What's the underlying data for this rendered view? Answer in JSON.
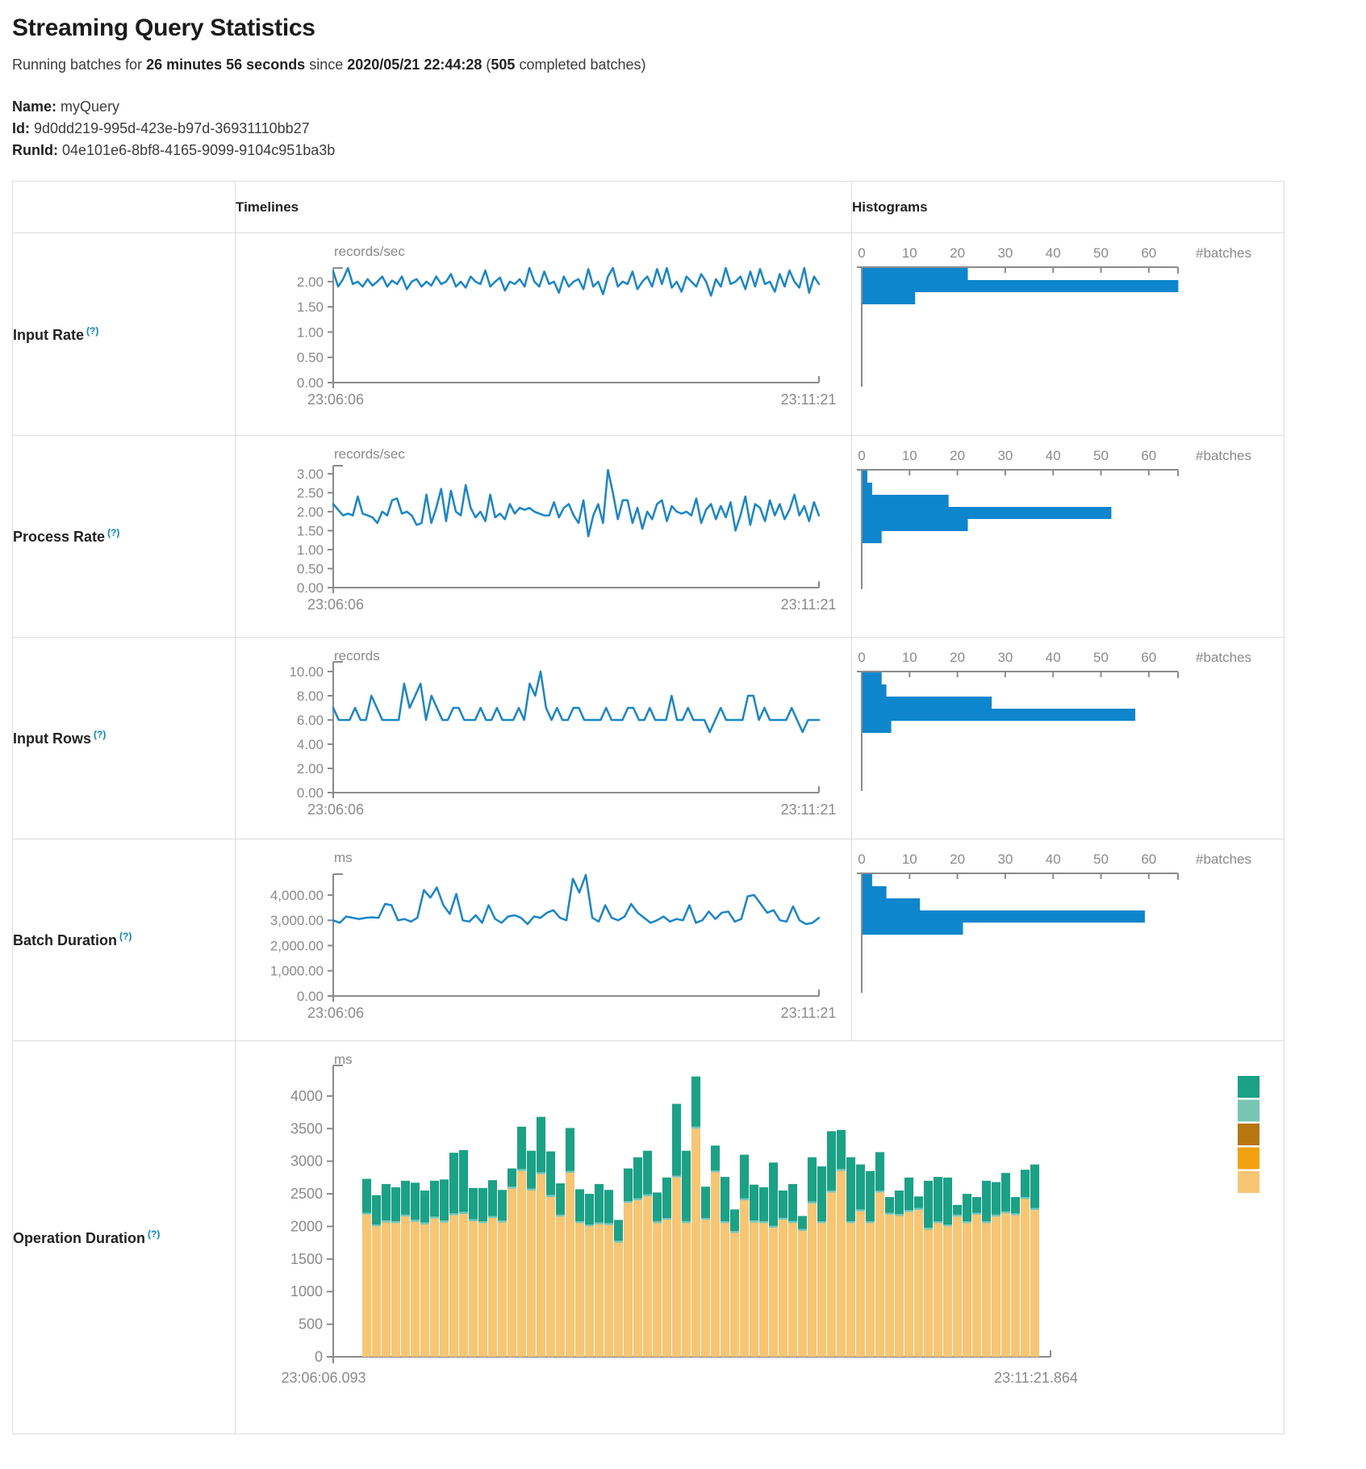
{
  "page": {
    "title": "Streaming Query Statistics",
    "subtitle": {
      "part1": "Running batches for ",
      "part2": "26 minutes 56 seconds",
      "part3": " since ",
      "part4": "2020/05/21 22:44:28",
      "part5": " (",
      "part6": "505",
      "part7": " completed batches)"
    },
    "name_label": "Name:",
    "name_value": "myQuery",
    "id_label": "Id:",
    "id_value": "9d0dd219-995d-423e-b97d-36931110bb27",
    "runid_label": "RunId:",
    "runid_value": "04e101e6-8bf8-4165-9099-9104c951ba3b"
  },
  "table": {
    "col_headers": [
      "Timelines",
      "Histograms"
    ],
    "rows": [
      {
        "label": "Input Rate",
        "help": "(?)"
      },
      {
        "label": "Process Rate",
        "help": "(?)"
      },
      {
        "label": "Input Rows",
        "help": "(?)"
      },
      {
        "label": "Batch Duration",
        "help": "(?)"
      },
      {
        "label": "Operation Duration",
        "help": "(?)"
      }
    ]
  },
  "colors": {
    "blue": "#0d86cd",
    "line_blue": "#1787cb",
    "axis_gray": "#8b8b8b",
    "tick_text": "#8a8a8a",
    "teal": "#1aa287",
    "light_teal": "#77c6b3",
    "dark_orange": "#b8770e",
    "orange": "#f2a00e",
    "tan": "#f8c572"
  },
  "chart_data": [
    {
      "row": "Input Rate",
      "type": "line",
      "unit": "records/sec",
      "x_start": "23:06:06",
      "x_end": "23:11:21",
      "ymax": 2.27,
      "yticks_v": [
        2,
        1.5,
        1,
        0.5,
        0
      ],
      "yticks_label": [
        "2.00",
        "1.50",
        "1.00",
        "0.50",
        "0.00"
      ],
      "values": [
        2.2,
        1.9,
        2.05,
        2.27,
        1.95,
        2.0,
        1.9,
        2.05,
        1.92,
        2.0,
        2.1,
        1.9,
        2.02,
        1.95,
        2.1,
        1.85,
        2.0,
        2.05,
        1.9,
        2.0,
        1.92,
        2.1,
        1.95,
        2.0,
        2.15,
        1.9,
        2.0,
        1.88,
        2.1,
        2.0,
        1.95,
        2.22,
        1.9,
        2.0,
        2.08,
        1.82,
        2.0,
        1.95,
        2.05,
        1.9,
        2.27,
        2.0,
        1.9,
        2.2,
        1.95,
        2.0,
        1.78,
        2.1,
        1.9,
        2.0,
        2.05,
        1.85,
        2.25,
        1.9,
        2.0,
        1.75,
        2.1,
        2.27,
        1.9,
        2.0,
        1.95,
        2.2,
        1.85,
        2.0,
        2.1,
        1.9,
        2.25,
        1.95,
        2.27,
        1.88,
        2.0,
        1.8,
        2.1,
        2.0,
        1.9,
        2.15,
        2.0,
        1.72,
        2.05,
        1.9,
        2.27,
        1.95,
        2.0,
        2.1,
        1.85,
        2.2,
        1.9,
        2.25,
        1.95,
        2.0,
        1.8,
        2.15,
        1.9,
        2.22,
        2.0,
        1.88,
        2.27,
        1.78,
        2.1,
        1.95
      ],
      "histogram": {
        "xticks_v": [
          0,
          10,
          20,
          30,
          40,
          50,
          60
        ],
        "xticks_label": [
          "0",
          "10",
          "20",
          "30",
          "40",
          "50",
          "60"
        ],
        "xlabel": "#batches",
        "values": [
          22,
          66,
          11
        ]
      }
    },
    {
      "row": "Process Rate",
      "type": "line",
      "unit": "records/sec",
      "x_start": "23:06:06",
      "x_end": "23:11:21",
      "ymax": 3.21,
      "yticks_v": [
        3,
        2.5,
        2,
        1.5,
        1,
        0.5,
        0
      ],
      "yticks_label": [
        "3.00",
        "2.50",
        "2.00",
        "1.50",
        "1.00",
        "0.50",
        "0.00"
      ],
      "values": [
        2.2,
        2.05,
        1.9,
        1.95,
        1.9,
        2.4,
        1.95,
        1.9,
        1.85,
        1.7,
        2.0,
        1.9,
        2.3,
        2.35,
        1.95,
        2.0,
        1.9,
        1.65,
        1.7,
        2.45,
        1.7,
        2.1,
        2.6,
        1.75,
        2.55,
        2.0,
        1.9,
        2.7,
        2.1,
        1.85,
        2.0,
        1.75,
        2.45,
        1.85,
        1.95,
        1.8,
        2.2,
        1.95,
        2.1,
        2.05,
        2.1,
        2.0,
        1.95,
        1.9,
        1.9,
        2.25,
        1.85,
        2.1,
        2.2,
        1.9,
        1.7,
        2.3,
        1.35,
        1.9,
        2.2,
        1.7,
        3.1,
        2.5,
        1.8,
        2.3,
        2.3,
        1.7,
        2.1,
        1.55,
        2.0,
        1.8,
        2.2,
        2.3,
        1.75,
        2.15,
        2.0,
        1.95,
        2.0,
        1.9,
        2.35,
        1.7,
        2.05,
        2.2,
        1.8,
        2.15,
        1.85,
        2.25,
        1.5,
        1.9,
        2.4,
        1.65,
        2.2,
        2.1,
        1.75,
        2.3,
        1.9,
        2.2,
        1.8,
        2.05,
        2.45,
        1.9,
        2.15,
        1.75,
        2.25,
        1.9
      ],
      "histogram": {
        "xticks_v": [
          0,
          10,
          20,
          30,
          40,
          50,
          60
        ],
        "xticks_label": [
          "0",
          "10",
          "20",
          "30",
          "40",
          "50",
          "60"
        ],
        "xlabel": "#batches",
        "values": [
          1,
          2,
          18,
          52,
          22,
          4
        ]
      }
    },
    {
      "row": "Input Rows",
      "type": "line",
      "unit": "records",
      "x_start": "23:06:06",
      "x_end": "23:11:21",
      "ymax": 10.8,
      "yticks_v": [
        10,
        8,
        6,
        4,
        2,
        0
      ],
      "yticks_label": [
        "10.00",
        "8.00",
        "6.00",
        "4.00",
        "2.00",
        "0.00"
      ],
      "values": [
        7,
        6,
        6,
        6,
        7,
        6,
        6,
        8,
        7,
        6,
        6,
        6,
        6,
        9,
        7,
        8,
        9,
        6,
        8,
        7,
        6,
        6,
        7,
        7,
        6,
        6,
        6,
        7,
        6,
        6,
        7,
        6,
        6,
        6,
        7,
        6,
        9,
        8,
        10,
        7,
        6,
        7,
        6,
        6,
        7,
        7,
        6,
        6,
        6,
        6,
        7,
        6,
        6,
        6,
        7,
        7,
        6,
        6,
        7,
        6,
        6,
        6,
        8,
        6,
        6,
        7,
        6,
        6,
        6,
        5,
        6,
        7,
        6,
        6,
        6,
        6,
        8,
        8,
        6,
        7,
        6,
        6,
        6,
        6,
        7,
        6,
        5,
        6,
        6,
        6
      ],
      "histogram": {
        "xticks_v": [
          0,
          10,
          20,
          30,
          40,
          50,
          60
        ],
        "xticks_label": [
          "0",
          "10",
          "20",
          "30",
          "40",
          "50",
          "60"
        ],
        "xlabel": "#batches",
        "values": [
          4,
          5,
          27,
          57,
          6
        ]
      }
    },
    {
      "row": "Batch Duration",
      "type": "line",
      "unit": "ms",
      "x_start": "23:06:06",
      "x_end": "23:11:21",
      "ymax": 4830,
      "yticks_v": [
        4000,
        3000,
        2000,
        1000,
        0
      ],
      "yticks_label": [
        "4,000.00",
        "3,000.00",
        "2,000.00",
        "1,000.00",
        "0.00"
      ],
      "values": [
        3000,
        2900,
        3150,
        3100,
        3050,
        3100,
        3120,
        3100,
        3650,
        3600,
        3000,
        3050,
        2950,
        3100,
        4200,
        3900,
        4300,
        3600,
        3250,
        4050,
        3000,
        2950,
        3200,
        2900,
        3600,
        3050,
        2900,
        3150,
        3200,
        3100,
        2850,
        3150,
        3100,
        3300,
        3400,
        3100,
        3000,
        4650,
        4100,
        4800,
        3100,
        2950,
        3600,
        3100,
        3000,
        3150,
        3650,
        3300,
        3100,
        2900,
        3000,
        3150,
        2950,
        3050,
        3000,
        3600,
        2900,
        3000,
        3350,
        3050,
        3300,
        3350,
        2950,
        3050,
        3950,
        4000,
        3650,
        3300,
        3400,
        3000,
        2950,
        3550,
        3000,
        2850,
        2900,
        3100
      ],
      "histogram": {
        "xticks_v": [
          0,
          10,
          20,
          30,
          40,
          50,
          60
        ],
        "xticks_label": [
          "0",
          "10",
          "20",
          "30",
          "40",
          "50",
          "60"
        ],
        "xlabel": "#batches",
        "values": [
          2,
          5,
          12,
          59,
          21
        ]
      }
    },
    {
      "row": "Operation Duration",
      "type": "stacked-bar",
      "unit": "ms",
      "x_start": "23:06:06.093",
      "x_end": "23:11:21.864",
      "ymax": 4370,
      "yticks_v": [
        0,
        500,
        1000,
        1500,
        2000,
        2500,
        3000,
        3500,
        4000
      ],
      "yticks_label": [
        "0",
        "500",
        "1000",
        "1500",
        "2000",
        "2500",
        "3000",
        "3500",
        "4000"
      ],
      "legend_colors": [
        "#1aa287",
        "#77c6b3",
        "#b8770e",
        "#f2a00e",
        "#f8c572"
      ],
      "series": [
        {
          "name": "base-segment",
          "color_key": "tan",
          "values": [
            2180,
            2000,
            2060,
            2050,
            2150,
            2070,
            2030,
            2120,
            2060,
            2170,
            2190,
            2080,
            2050,
            2130,
            2060,
            2580,
            2850,
            2550,
            2800,
            2450,
            2150,
            2820,
            2050,
            2000,
            2030,
            2020,
            1750,
            2360,
            2400,
            2460,
            2050,
            2100,
            2750,
            2050,
            3500,
            2100,
            2830,
            2050,
            1900,
            2400,
            2060,
            2050,
            1980,
            2100,
            2050,
            1930,
            2350,
            2050,
            2520,
            2850,
            2050,
            2230,
            2050,
            2520,
            2180,
            2160,
            2220,
            2250,
            1950,
            2050,
            2000,
            2150,
            2050,
            2180,
            2050,
            2150,
            2200,
            2170,
            2420,
            2250
          ]
        },
        {
          "name": "middle-segment",
          "color_key": "light_teal",
          "constant": 30
        },
        {
          "name": "top-segment",
          "color_key": "teal",
          "values": [
            520,
            450,
            560,
            520,
            520,
            570,
            490,
            550,
            630,
            930,
            950,
            480,
            510,
            550,
            470,
            280,
            650,
            580,
            850,
            670,
            480,
            660,
            490,
            470,
            590,
            510,
            320,
            500,
            630,
            670,
            440,
            620,
            1100,
            1080,
            770,
            480,
            380,
            680,
            330,
            670,
            550,
            520,
            970,
            420,
            570,
            200,
            680,
            840,
            910,
            600,
            980,
            690,
            770,
            590,
            240,
            360,
            500,
            180,
            720,
            680,
            720,
            150,
            420,
            240,
            620,
            500,
            590,
            250,
            420,
            670
          ]
        }
      ]
    }
  ]
}
